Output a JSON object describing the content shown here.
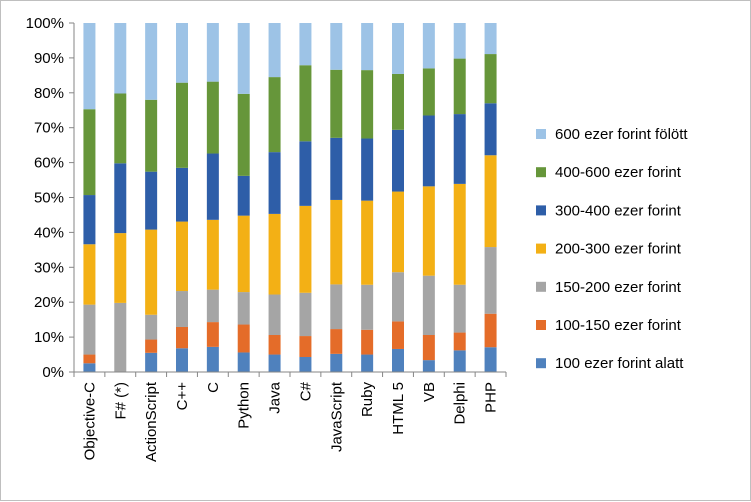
{
  "chart_data": {
    "type": "bar",
    "stacked": "percent",
    "categories": [
      "Objective-C",
      "F# (*)",
      "ActionScript",
      "C++",
      "C",
      "Python",
      "Java",
      "C#",
      "JavaScript",
      "Ruby",
      "HTML 5",
      "VB",
      "Delphi",
      "PHP"
    ],
    "series": [
      {
        "name": "100 ezer forint alatt",
        "color": "#4f81bd",
        "values": [
          2.5,
          0,
          5.5,
          6.8,
          7.2,
          5.6,
          5.0,
          4.3,
          5.2,
          5.0,
          6.6,
          3.4,
          6.2,
          7.1
        ]
      },
      {
        "name": "100-150 ezer forint",
        "color": "#e46c29",
        "values": [
          2.5,
          0,
          3.8,
          6.1,
          7.1,
          8.0,
          5.6,
          6.0,
          7.1,
          7.1,
          7.9,
          7.2,
          5.1,
          9.6
        ]
      },
      {
        "name": "150-200 ezer forint",
        "color": "#a5a5a5",
        "values": [
          14.3,
          19.8,
          7.1,
          10.3,
          9.3,
          9.3,
          11.6,
          12.4,
          12.8,
          12.9,
          14.1,
          17.0,
          13.7,
          19.1
        ]
      },
      {
        "name": "200-300 ezer forint",
        "color": "#f3b015",
        "values": [
          17.3,
          20.0,
          24.4,
          19.9,
          20.0,
          21.9,
          23.1,
          24.9,
          24.2,
          24.1,
          23.1,
          25.6,
          28.9,
          26.3
        ]
      },
      {
        "name": "300-400 ezer forint",
        "color": "#2e5ea8",
        "values": [
          14.1,
          20.0,
          16.6,
          15.4,
          19.0,
          11.4,
          17.7,
          18.5,
          17.8,
          17.8,
          17.7,
          20.3,
          20.0,
          14.9
        ]
      },
      {
        "name": "400-600 ezer forint",
        "color": "#66963a",
        "values": [
          24.6,
          20.0,
          20.6,
          24.4,
          20.6,
          23.5,
          21.5,
          21.8,
          19.5,
          19.6,
          16.0,
          13.5,
          15.9,
          14.1
        ]
      },
      {
        "name": "600 ezer forint fölött",
        "color": "#9dc3e6",
        "values": [
          24.7,
          20.2,
          22.0,
          17.1,
          16.8,
          20.3,
          15.5,
          12.1,
          13.4,
          13.5,
          14.6,
          13.0,
          10.2,
          8.9
        ]
      }
    ],
    "yticks": [
      "0%",
      "10%",
      "20%",
      "30%",
      "40%",
      "50%",
      "60%",
      "70%",
      "80%",
      "90%",
      "100%"
    ],
    "ylim": [
      0,
      100
    ],
    "grid": false,
    "legend_position": "right"
  }
}
